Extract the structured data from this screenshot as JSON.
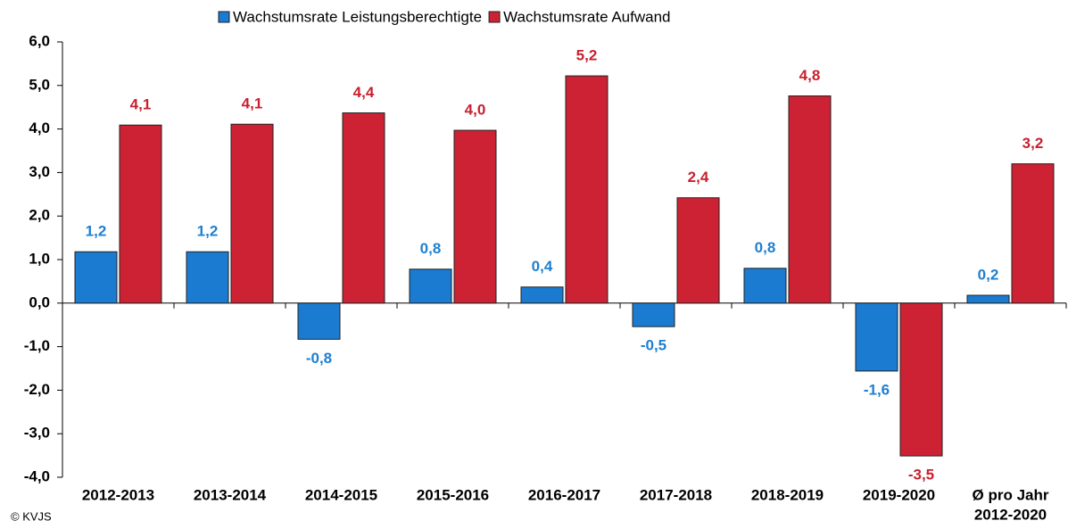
{
  "chart_data": {
    "type": "bar",
    "categories": [
      "2012-2013",
      "2013-2014",
      "2014-2015",
      "2015-2016",
      "2016-2017",
      "2017-2018",
      "2018-2019",
      "2019-2020",
      [
        "Ø pro Jahr",
        "2012-2020"
      ]
    ],
    "series": [
      {
        "name": "Wachstumsrate Leistungsberechtigte",
        "color": "#1a7bd0",
        "label_color": "#1f7fcf",
        "values": [
          1.18,
          1.18,
          -0.83,
          0.78,
          0.37,
          -0.54,
          0.8,
          -1.56,
          0.18
        ],
        "value_labels": [
          "1,2",
          "1,2",
          "-0,8",
          "0,8",
          "0,4",
          "-0,5",
          "0,8",
          "-1,6",
          "0,2"
        ]
      },
      {
        "name": "Wachstumsrate Aufwand",
        "color": "#cc2233",
        "label_color": "#c8202f",
        "values": [
          4.09,
          4.11,
          4.37,
          3.97,
          5.22,
          2.42,
          4.76,
          -3.51,
          3.2
        ],
        "value_labels": [
          "4,1",
          "4,1",
          "4,4",
          "4,0",
          "5,2",
          "2,4",
          "4,8",
          "-3,5",
          "3,2"
        ]
      }
    ],
    "ylim": [
      -4,
      6
    ],
    "yticks": [
      {
        "value": -4,
        "label": "-4,0"
      },
      {
        "value": -3,
        "label": "-3,0"
      },
      {
        "value": -2,
        "label": "-2,0"
      },
      {
        "value": -1,
        "label": "-1,0"
      },
      {
        "value": 0,
        "label": "0,0"
      },
      {
        "value": 1,
        "label": "1,0"
      },
      {
        "value": 2,
        "label": "2,0"
      },
      {
        "value": 3,
        "label": "3,0"
      },
      {
        "value": 4,
        "label": "4,0"
      },
      {
        "value": 5,
        "label": "5,0"
      },
      {
        "value": 6,
        "label": "6,0"
      }
    ],
    "grid": false,
    "legend": "top",
    "credit": "© KVJS"
  }
}
